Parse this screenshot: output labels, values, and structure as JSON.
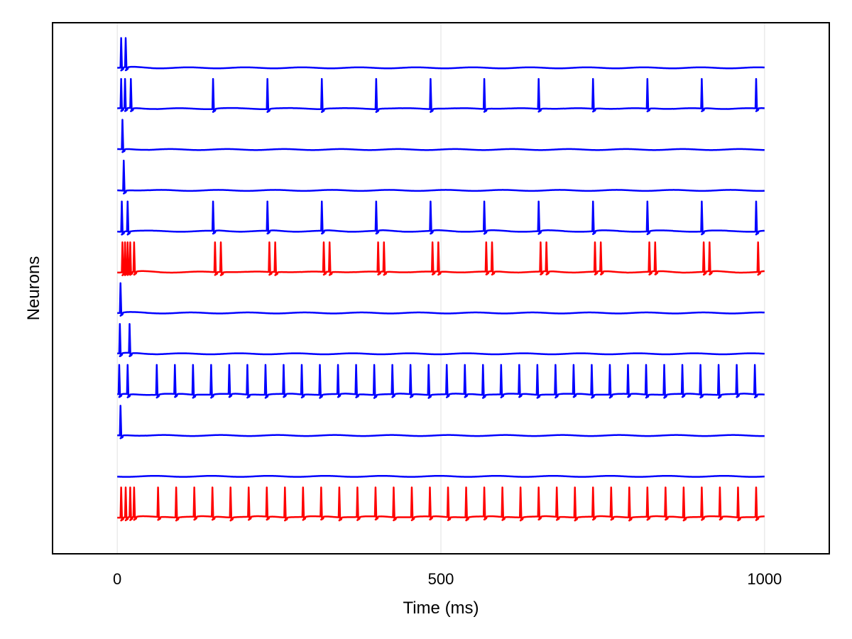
{
  "chart_data": {
    "type": "line",
    "title": "",
    "xlabel": "Time (ms)",
    "ylabel": "Neurons",
    "xlim": [
      -100,
      1100
    ],
    "ylim": [
      0,
      13
    ],
    "x_ticks": [
      0,
      500,
      1000
    ],
    "x_tick_labels": [
      "0",
      "500",
      "1000"
    ],
    "grid": true,
    "colors": {
      "excitatory": "#0000ff",
      "inhibitory": "#ff0000",
      "grid": "#e6e6e6",
      "frame": "#000000"
    },
    "series": [
      {
        "color": "#0000ff",
        "offset": 12,
        "spikes": [
          6,
          13
        ]
      },
      {
        "color": "#0000ff",
        "offset": 11,
        "spikes": [
          6,
          12,
          21,
          148,
          232,
          316,
          400,
          484,
          567,
          651,
          735,
          819,
          903,
          987
        ]
      },
      {
        "color": "#0000ff",
        "offset": 10,
        "spikes": [
          8
        ]
      },
      {
        "color": "#0000ff",
        "offset": 9,
        "spikes": [
          10
        ]
      },
      {
        "color": "#0000ff",
        "offset": 8,
        "spikes": [
          7,
          16,
          148,
          232,
          316,
          400,
          484,
          567,
          651,
          735,
          819,
          903,
          987
        ]
      },
      {
        "color": "#ff0000",
        "offset": 7,
        "spikes": [
          8,
          12,
          16,
          20,
          26,
          151,
          160,
          235,
          244,
          319,
          328,
          403,
          412,
          487,
          496,
          570,
          579,
          654,
          663,
          738,
          747,
          822,
          831,
          906,
          915,
          990
        ]
      },
      {
        "color": "#0000ff",
        "offset": 6,
        "spikes": [
          5
        ]
      },
      {
        "color": "#0000ff",
        "offset": 5,
        "spikes": [
          4,
          19
        ]
      },
      {
        "color": "#0000ff",
        "offset": 4,
        "spikes": [
          3,
          16,
          61,
          89,
          117,
          145,
          173,
          201,
          229,
          257,
          285,
          313,
          341,
          369,
          397,
          425,
          453,
          481,
          509,
          537,
          565,
          593,
          621,
          649,
          677,
          705,
          733,
          761,
          789,
          817,
          845,
          873,
          901,
          929,
          957,
          985
        ]
      },
      {
        "color": "#0000ff",
        "offset": 3,
        "spikes": [
          5
        ]
      },
      {
        "color": "#0000ff",
        "offset": 2,
        "spikes": []
      },
      {
        "color": "#ff0000",
        "offset": 1,
        "spikes": [
          6,
          13,
          20,
          26,
          63,
          91,
          119,
          147,
          175,
          203,
          231,
          259,
          287,
          315,
          343,
          371,
          399,
          427,
          455,
          483,
          511,
          539,
          567,
          595,
          623,
          651,
          679,
          707,
          735,
          763,
          791,
          819,
          847,
          875,
          903,
          931,
          959,
          987
        ]
      }
    ]
  }
}
